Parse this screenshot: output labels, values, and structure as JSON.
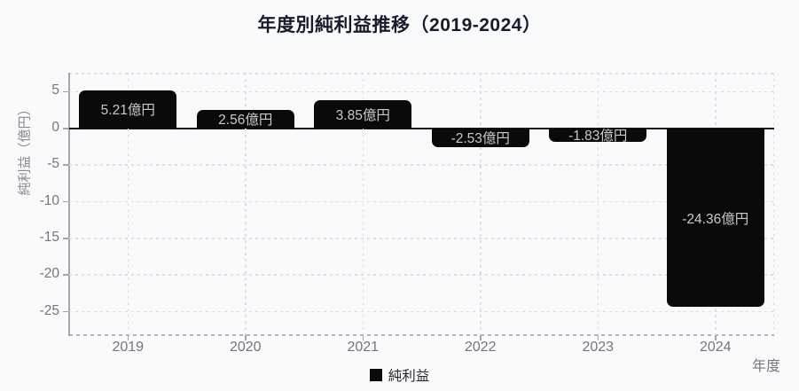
{
  "title": "年度別純利益推移（2019-2024）",
  "legend": {
    "label": "純利益",
    "position": "bottom",
    "swatch_color": "#0a0a0a"
  },
  "axes": {
    "x_title": "年度",
    "y_title": "純利益（億円）",
    "x_tick_labels": [
      "2019",
      "2020",
      "2021",
      "2022",
      "2023",
      "2024"
    ],
    "y_tick_labels": [
      "5",
      "0",
      "-5",
      "-10",
      "-15",
      "-20",
      "-25"
    ]
  },
  "chart_data": {
    "type": "bar",
    "title": "年度別純利益推移（2019-2024）",
    "categories": [
      "2019",
      "2020",
      "2021",
      "2022",
      "2023",
      "2024"
    ],
    "series": [
      {
        "name": "純利益",
        "values": [
          5.21,
          2.56,
          3.85,
          -2.53,
          -1.83,
          -24.36
        ],
        "bar_labels": [
          "5.21億円",
          "2.56億円",
          "3.85億円",
          "-2.53億円",
          "-1.83億円",
          "-24.36億円"
        ],
        "color": "#0a0a0a",
        "label_color": "#c9c9cc"
      }
    ],
    "xlabel": "年度",
    "ylabel": "純利益（億円）",
    "y_ticks": [
      5,
      0,
      -5,
      -10,
      -15,
      -20,
      -25
    ],
    "ylim": [
      -28.2,
      7.6
    ],
    "grid": "dashed",
    "zero_line": true,
    "legend_position": "bottom",
    "background_color": "#f9fafb"
  }
}
